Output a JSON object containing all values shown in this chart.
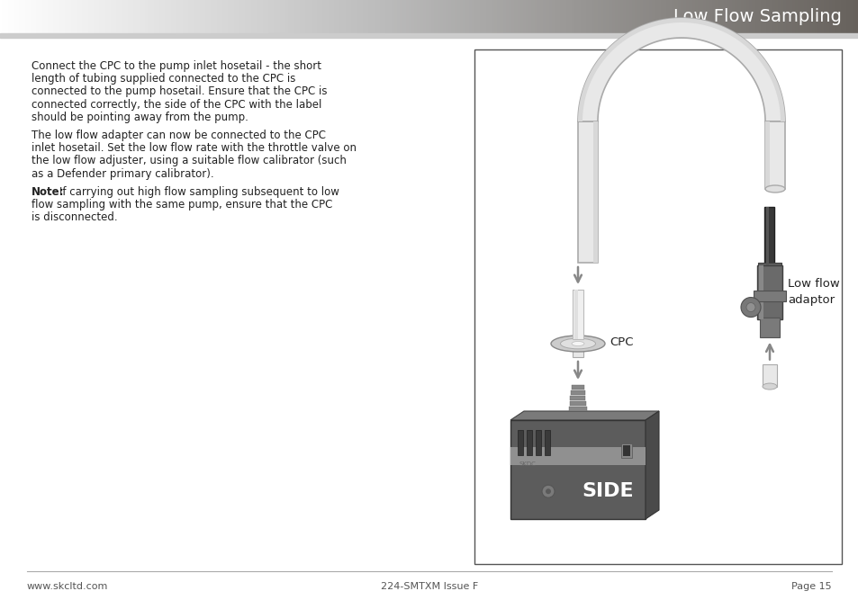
{
  "title": "Low Flow Sampling",
  "title_text_color": "#ffffff",
  "page_bg": "#ffffff",
  "footer_left": "www.skcltd.com",
  "footer_center": "224-SMTXM Issue F",
  "footer_right": "Page 15",
  "footer_color": "#555555",
  "body_paragraphs": [
    [
      "Connect the CPC to the pump inlet hosetail - the short",
      "length of tubing supplied connected to the CPC is",
      "connected to the pump hosetail. Ensure that the CPC is",
      "connected correctly, the side of the CPC with the label",
      "should be pointing away from the pump."
    ],
    [
      "The low flow adapter can now be connected to the CPC",
      "inlet hosetail. Set the low flow rate with the throttle valve on",
      "the low flow adjuster, using a suitable flow calibrator (such",
      "as a Defender primary calibrator)."
    ],
    [
      "flow sampling with the same pump, ensure that the CPC",
      "is disconnected."
    ]
  ],
  "note_line1_rest": "If carrying out high flow sampling subsequent to low",
  "diagram_label_cpc": "CPC",
  "diagram_label_lowflow": "Low flow\nadaptor",
  "box_border": "#444444",
  "text_color": "#222222",
  "line_separator_color": "#aaaaaa",
  "tube_fill": "#e8e8e8",
  "tube_edge": "#aaaaaa",
  "pump_dark": "#5a5a5a",
  "pump_mid": "#888888",
  "pump_light": "#b0b0b0",
  "arrow_color": "#888888"
}
